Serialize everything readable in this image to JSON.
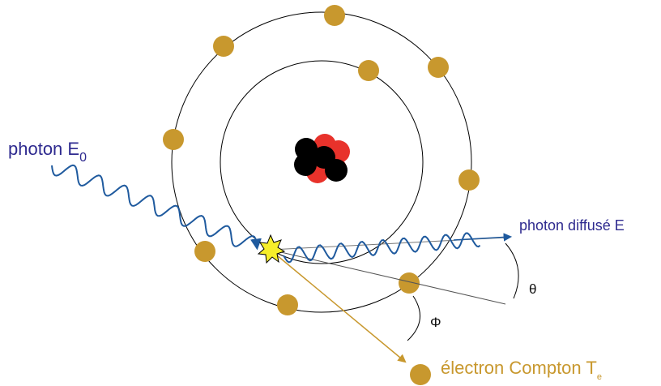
{
  "labels": {
    "incident_photon": "photon E",
    "incident_photon_sub": "0",
    "scattered_photon": "photon diffusé E",
    "theta": "θ",
    "phi": "Φ",
    "compton_electron": "électron Compton T",
    "compton_electron_sub": "e"
  },
  "colors": {
    "photon_wave": "#1f5a9e",
    "photon_text": "#2e2a8f",
    "electron": "#c8982e",
    "electron_track": "#c8982e",
    "electron_text": "#c8982e",
    "orbit": "#000000",
    "nucleus_neutron": "#000000",
    "nucleus_proton": "#e8322b",
    "interaction_star": "#f7ee2a",
    "angle_lines": "#333333"
  },
  "icons": {
    "interaction": "star-burst-icon",
    "direction": "arrowhead-icon"
  }
}
